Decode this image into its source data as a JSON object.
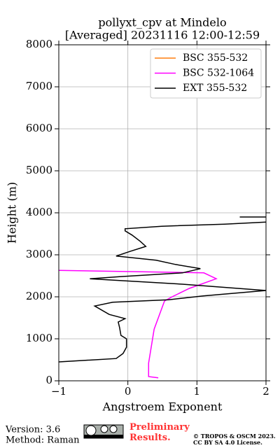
{
  "chart_data": {
    "type": "profile",
    "title": "pollyxt_cpv at Mindelo",
    "subtitle": "[Averaged] 20231116 12:00-12:59",
    "x_label": "Angstroem Exponent",
    "y_label": "Height (m)",
    "xlim": [
      -1,
      2
    ],
    "ylim": [
      0,
      8000
    ],
    "xticks": [
      {
        "value": -1,
        "label": "−1"
      },
      0,
      1,
      2
    ],
    "yticks": [
      0,
      1000,
      2000,
      3000,
      4000,
      5000,
      6000,
      7000,
      8000
    ],
    "grid": true,
    "legend": "upper right",
    "series": [
      {
        "name": "BSC 355-532",
        "color": "#ff7f0e",
        "heights": [],
        "values": []
      },
      {
        "name": "BSC 532-1064",
        "color": "#ff00ff",
        "heights": [
          70,
          100,
          420,
          1230,
          1900,
          2000,
          2200,
          2430,
          2570,
          2630
        ],
        "values": [
          0.44,
          0.3,
          0.3,
          0.38,
          0.53,
          0.64,
          0.89,
          1.28,
          1.1,
          -1
        ]
      },
      {
        "name": "EXT 355-532",
        "color": "#000000",
        "heights": [
          450,
          530,
          650,
          800,
          1000,
          1080,
          1270,
          1400,
          1480,
          1580,
          1780,
          1870,
          1930,
          2020,
          2150,
          2300,
          2430,
          2480,
          2570,
          2670,
          2770,
          2870,
          2970,
          3080,
          3200,
          3320,
          3470,
          3570,
          3620,
          3680,
          3730,
          3780,
          null,
          3900,
          3900
        ],
        "values": [
          -1,
          -0.17,
          -0.07,
          -0.02,
          -0.02,
          -0.1,
          -0.12,
          -0.14,
          -0.04,
          -0.27,
          -0.48,
          -0.22,
          0.59,
          1.09,
          2,
          0.79,
          -0.55,
          -0.12,
          0.79,
          1.05,
          0.69,
          0.41,
          -0.17,
          0.03,
          0.26,
          0.18,
          0.06,
          -0.04,
          -0.04,
          0.49,
          1.4,
          2,
          null,
          1.62,
          2
        ]
      }
    ]
  },
  "footer": {
    "version": "Version: 3.6",
    "method": "Method: Raman",
    "status": "Preliminary Results.",
    "copyright": "© TROPOS & OSCM 2023.",
    "license": "CC BY SA 4.0 License."
  }
}
